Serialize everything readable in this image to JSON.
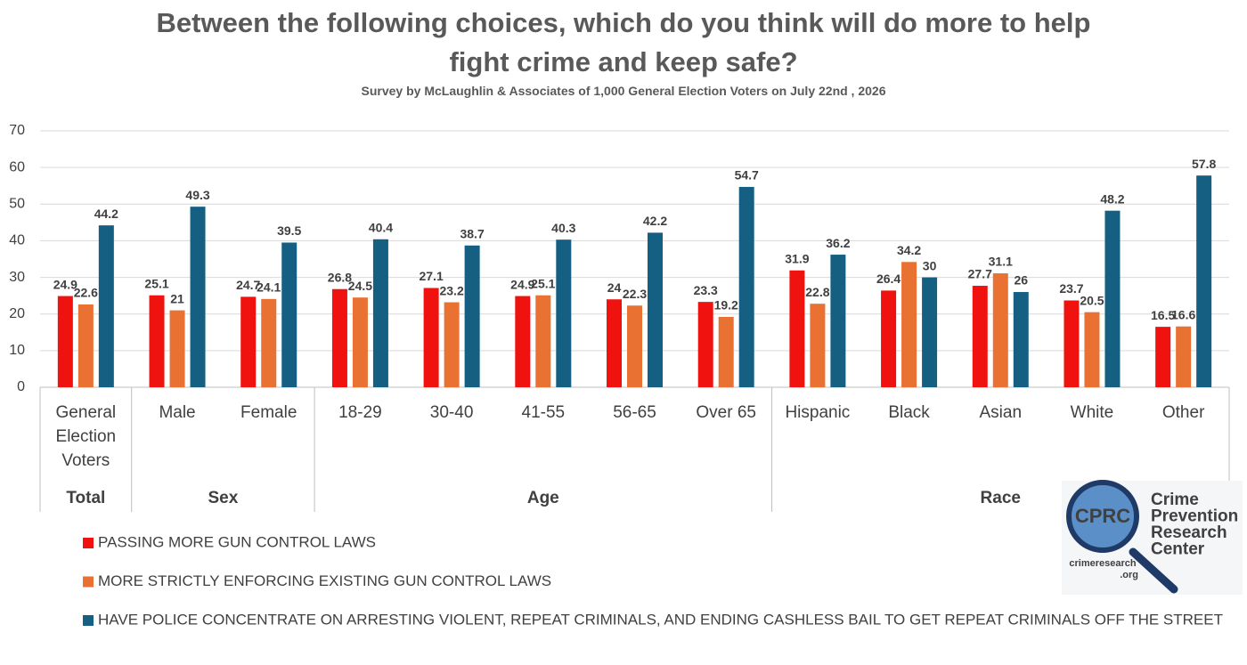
{
  "chart_data": {
    "type": "bar",
    "title": "Between the following choices, which do you think will do more to help fight crime and keep safe?",
    "subtitle": "Survey by McLaughlin & Associates of 1,000 General Election Voters on July 22nd , 2026",
    "categories": [
      "General Election Voters",
      "Male",
      "Female",
      "18-29",
      "30-40",
      "41-55",
      "56-65",
      "Over 65",
      "Hispanic",
      "Black",
      "Asian",
      "White",
      "Other"
    ],
    "groups": [
      "Total",
      "Sex",
      "Sex",
      "Age",
      "Age",
      "Age",
      "Age",
      "Age",
      "Race",
      "Race",
      "Race",
      "Race",
      "Race"
    ],
    "series": [
      {
        "name": "PASSING MORE GUN CONTROL LAWS",
        "color": "#f0120e",
        "values": [
          24.9,
          25.1,
          24.7,
          26.8,
          27.1,
          24.9,
          24,
          23.3,
          31.9,
          26.4,
          27.7,
          23.7,
          16.5
        ]
      },
      {
        "name": "MORE STRICTLY ENFORCING EXISTING GUN CONTROL LAWS",
        "color": "#e97132",
        "values": [
          22.6,
          21,
          24.1,
          24.5,
          23.2,
          25.1,
          22.3,
          19.2,
          22.8,
          34.2,
          31.1,
          20.5,
          16.6
        ]
      },
      {
        "name": "HAVE POLICE CONCENTRATE ON ARRESTING VIOLENT, REPEAT CRIMINALS, AND ENDING CASHLESS BAIL TO GET REPEAT CRIMINALS OFF THE STREET",
        "color": "#156082",
        "values": [
          44.2,
          49.3,
          39.5,
          40.4,
          38.7,
          40.3,
          42.2,
          54.7,
          36.2,
          30,
          26,
          48.2,
          57.8
        ]
      }
    ],
    "ylim": [
      0,
      70
    ],
    "yticks": [
      0,
      10,
      20,
      30,
      40,
      50,
      60,
      70
    ],
    "grid": true,
    "legend": "bottom-left"
  },
  "logo": {
    "badge": "CPRC",
    "name": [
      "Crime",
      "Prevention",
      "Research",
      "Center"
    ],
    "url": [
      "crimeresearch",
      ".org"
    ]
  }
}
